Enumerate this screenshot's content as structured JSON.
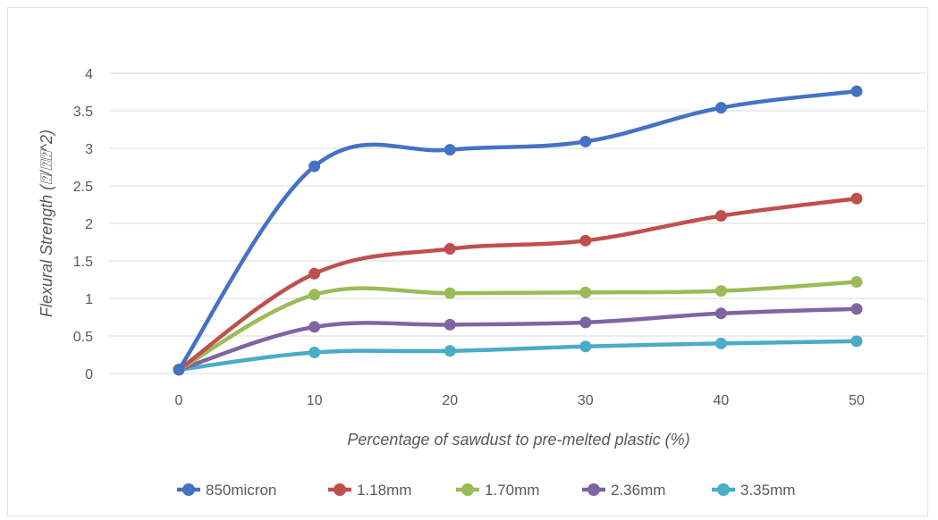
{
  "chart_data": {
    "type": "line",
    "title": "",
    "xlabel": "Percentage of sawdust to pre-melted plastic (%)",
    "ylabel": "Flexural  Strength (⍰/⍰⍰^2)",
    "x": [
      0,
      10,
      20,
      30,
      40,
      50
    ],
    "ylim": [
      0,
      4
    ],
    "yticks": [
      0,
      0.5,
      1,
      1.5,
      2,
      2.5,
      3,
      3.5,
      4
    ],
    "ytick_labels": [
      "0",
      "0.5",
      "1",
      "1.5",
      "2",
      "2.5",
      "3",
      "3.5",
      "4"
    ],
    "grid": true,
    "legend_position": "bottom",
    "series": [
      {
        "name": "850micron",
        "color": "#4472C4",
        "values": [
          0.05,
          2.76,
          2.98,
          3.09,
          3.54,
          3.76
        ]
      },
      {
        "name": "1.18mm",
        "color": "#C0504D",
        "values": [
          0.05,
          1.33,
          1.66,
          1.77,
          2.1,
          2.33
        ]
      },
      {
        "name": "1.70mm",
        "color": "#9BBB59",
        "values": [
          0.05,
          1.05,
          1.07,
          1.08,
          1.1,
          1.22
        ]
      },
      {
        "name": "2.36mm",
        "color": "#8064A2",
        "values": [
          0.05,
          0.62,
          0.65,
          0.68,
          0.8,
          0.86
        ]
      },
      {
        "name": "3.35mm",
        "color": "#4BACC6",
        "values": [
          0.05,
          0.28,
          0.3,
          0.36,
          0.4,
          0.43
        ]
      }
    ]
  }
}
